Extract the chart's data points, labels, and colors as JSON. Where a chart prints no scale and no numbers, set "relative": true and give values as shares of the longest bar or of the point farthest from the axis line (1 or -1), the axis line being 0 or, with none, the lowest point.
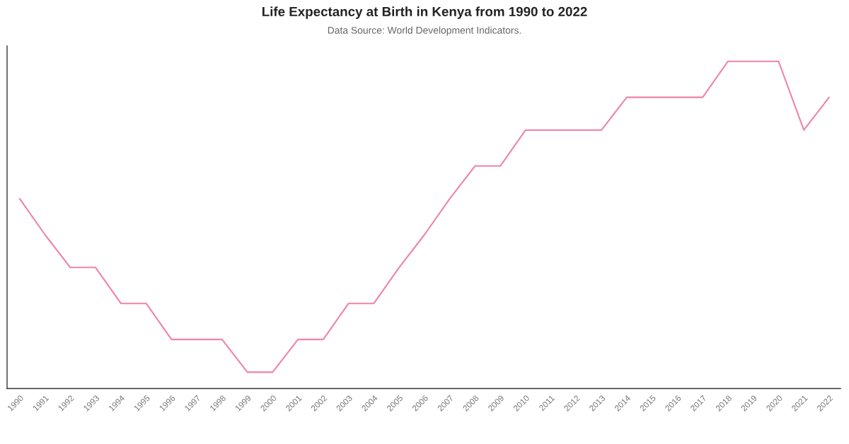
{
  "chart_data": {
    "type": "line",
    "title": "Life Expectancy at Birth in Kenya from 1990 to 2022",
    "subtitle": "Data Source: World Development Indicators.",
    "relative": true,
    "tick_labels": "x",
    "categories": [
      "1990",
      "1991",
      "1992",
      "1993",
      "1994",
      "1995",
      "1996",
      "1997",
      "1998",
      "1999",
      "2000",
      "2001",
      "2002",
      "2003",
      "2004",
      "2005",
      "2006",
      "2007",
      "2008",
      "2009",
      "2010",
      "2011",
      "2012",
      "2013",
      "2014",
      "2015",
      "2016",
      "2017",
      "2018",
      "2019",
      "2020",
      "2021",
      "2022"
    ],
    "series": [
      {
        "color": "#ef82ab",
        "values": [
          0.58,
          0.47,
          0.37,
          0.37,
          0.26,
          0.26,
          0.15,
          0.15,
          0.15,
          0.05,
          0.05,
          0.15,
          0.15,
          0.26,
          0.26,
          0.37,
          0.47,
          0.58,
          0.68,
          0.68,
          0.79,
          0.79,
          0.79,
          0.79,
          0.89,
          0.89,
          0.89,
          0.89,
          1.0,
          1.0,
          1.0,
          0.79,
          0.89
        ]
      }
    ]
  }
}
